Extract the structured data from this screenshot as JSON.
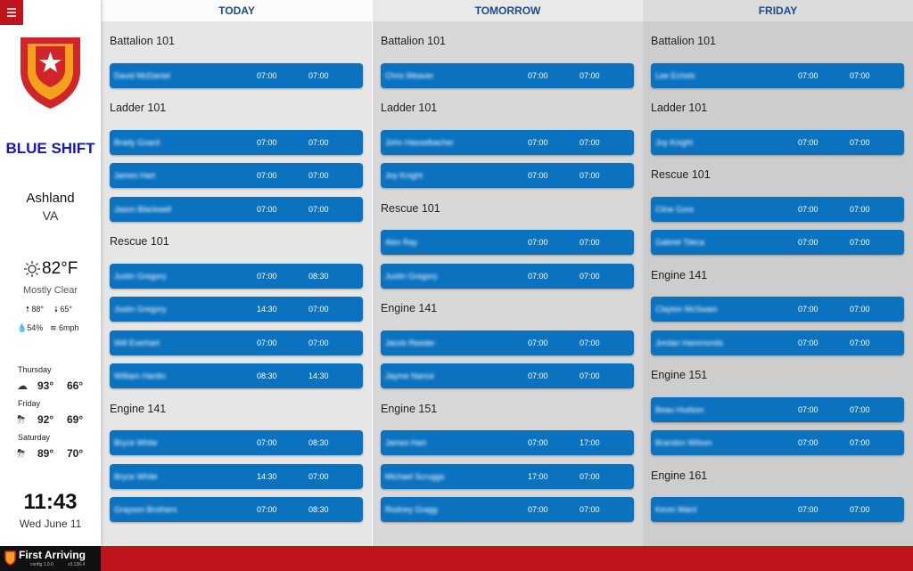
{
  "sidebar": {
    "shift": "BLUE SHIFT",
    "city": "Ashland",
    "state": "VA",
    "weather": {
      "temp": "82°F",
      "condition": "Mostly Clear",
      "high": "88°",
      "low": "65°",
      "humidity": "54%",
      "wind": "6mph"
    },
    "forecast": [
      {
        "day": "Thursday",
        "high": "93°",
        "low": "66°"
      },
      {
        "day": "Friday",
        "high": "92°",
        "low": "69°"
      },
      {
        "day": "Saturday",
        "high": "89°",
        "low": "70°"
      }
    ],
    "time": "11:43",
    "date": "Wed June 11"
  },
  "columns": [
    {
      "header": "TODAY",
      "units": [
        {
          "name": "Battalion 101",
          "shifts": [
            {
              "name": "David McDaniel",
              "start": "07:00",
              "end": "07:00"
            }
          ]
        },
        {
          "name": "Ladder 101",
          "shifts": [
            {
              "name": "Brady Goard",
              "start": "07:00",
              "end": "07:00"
            },
            {
              "name": "James Hart",
              "start": "07:00",
              "end": "07:00"
            },
            {
              "name": "Jason Blackwell",
              "start": "07:00",
              "end": "07:00"
            }
          ]
        },
        {
          "name": "Rescue 101",
          "shifts": [
            {
              "name": "Justin Gregory",
              "start": "07:00",
              "end": "08:30"
            },
            {
              "name": "Justin Gregory",
              "start": "14:30",
              "end": "07:00"
            },
            {
              "name": "Will Everhart",
              "start": "07:00",
              "end": "07:00"
            },
            {
              "name": "William Hardin",
              "start": "08:30",
              "end": "14:30"
            }
          ]
        },
        {
          "name": "Engine 141",
          "shifts": [
            {
              "name": "Bryce White",
              "start": "07:00",
              "end": "08:30"
            },
            {
              "name": "Bryce White",
              "start": "14:30",
              "end": "07:00"
            },
            {
              "name": "Grayson Brothers",
              "start": "07:00",
              "end": "08:30"
            }
          ]
        }
      ]
    },
    {
      "header": "TOMORROW",
      "units": [
        {
          "name": "Battalion 101",
          "shifts": [
            {
              "name": "Chris Weaver",
              "start": "07:00",
              "end": "07:00"
            }
          ]
        },
        {
          "name": "Ladder 101",
          "shifts": [
            {
              "name": "John Hasselbacher",
              "start": "07:00",
              "end": "07:00"
            },
            {
              "name": "Joy Knight",
              "start": "07:00",
              "end": "07:00"
            }
          ]
        },
        {
          "name": "Rescue 101",
          "shifts": [
            {
              "name": "Alex Ray",
              "start": "07:00",
              "end": "07:00"
            },
            {
              "name": "Justin Gregory",
              "start": "07:00",
              "end": "07:00"
            }
          ]
        },
        {
          "name": "Engine 141",
          "shifts": [
            {
              "name": "Jacob Reeder",
              "start": "07:00",
              "end": "07:00"
            },
            {
              "name": "Jayme Nance",
              "start": "07:00",
              "end": "07:00"
            }
          ]
        },
        {
          "name": "Engine 151",
          "shifts": [
            {
              "name": "James Hart",
              "start": "07:00",
              "end": "17:00"
            },
            {
              "name": "Michael Scruggs",
              "start": "17:00",
              "end": "07:00"
            },
            {
              "name": "Rodney Gragg",
              "start": "07:00",
              "end": "07:00"
            }
          ]
        }
      ]
    },
    {
      "header": "FRIDAY",
      "units": [
        {
          "name": "Battalion 101",
          "shifts": [
            {
              "name": "Lee Echols",
              "start": "07:00",
              "end": "07:00"
            }
          ]
        },
        {
          "name": "Ladder 101",
          "shifts": [
            {
              "name": "Joy Knight",
              "start": "07:00",
              "end": "07:00"
            }
          ]
        },
        {
          "name": "Rescue 101",
          "shifts": [
            {
              "name": "Cline Gore",
              "start": "07:00",
              "end": "07:00"
            },
            {
              "name": "Gabriel Tileca",
              "start": "07:00",
              "end": "07:00"
            }
          ]
        },
        {
          "name": "Engine 141",
          "shifts": [
            {
              "name": "Clayton McSwain",
              "start": "07:00",
              "end": "07:00"
            },
            {
              "name": "Jordan Hammonds",
              "start": "07:00",
              "end": "07:00"
            }
          ]
        },
        {
          "name": "Engine 151",
          "shifts": [
            {
              "name": "Beau Hudson",
              "start": "07:00",
              "end": "07:00"
            },
            {
              "name": "Brandon Wilson",
              "start": "07:00",
              "end": "07:00"
            }
          ]
        },
        {
          "name": "Engine 161",
          "shifts": [
            {
              "name": "Kevin Ward",
              "start": "07:00",
              "end": "07:00"
            }
          ]
        }
      ]
    }
  ],
  "footer": {
    "brand": "First Arriving",
    "config": "config 1.0.0",
    "version": "v3.136.4"
  }
}
